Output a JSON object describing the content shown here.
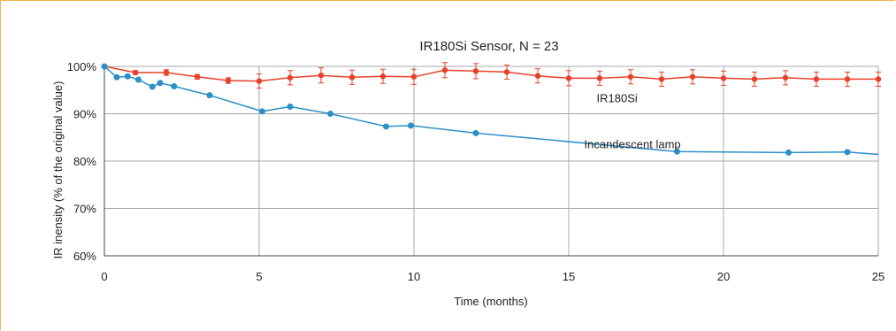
{
  "chart_data": {
    "type": "line",
    "title": "IR180Si Sensor, N = 23",
    "xlabel": "Time (months)",
    "ylabel": "IR inensity (% of the original value)",
    "xlim": [
      0,
      25
    ],
    "ylim": [
      60,
      100
    ],
    "x_ticks": [
      "0",
      "5",
      "10",
      "15",
      "20",
      "25"
    ],
    "y_ticks": [
      "60%",
      "70%",
      "80%",
      "90%",
      "100%"
    ],
    "grid": true,
    "series": [
      {
        "name": "IR180Si",
        "color": "#e8402a",
        "x": [
          0,
          1,
          2,
          3,
          4,
          5,
          6,
          7,
          8,
          9,
          10,
          11,
          12,
          13,
          14,
          15,
          16,
          17,
          18,
          19,
          20,
          21,
          22,
          23,
          24,
          25
        ],
        "y": [
          100,
          98.7,
          98.7,
          97.8,
          97.0,
          96.9,
          97.6,
          98.1,
          97.7,
          97.9,
          97.8,
          99.2,
          99.0,
          98.8,
          98.0,
          97.5,
          97.5,
          97.8,
          97.3,
          97.8,
          97.5,
          97.3,
          97.6,
          97.3,
          97.3,
          97.3
        ],
        "error": [
          0,
          0.4,
          0.6,
          0.5,
          0.6,
          1.5,
          1.5,
          1.6,
          1.5,
          1.5,
          1.6,
          1.6,
          1.6,
          1.5,
          1.5,
          1.6,
          1.5,
          1.5,
          1.5,
          1.5,
          1.5,
          1.5,
          1.5,
          1.5,
          1.5,
          1.5
        ]
      },
      {
        "name": "Incandescent lamp",
        "color": "#2b8fc9",
        "x": [
          0,
          0.4,
          0.75,
          1.1,
          1.55,
          1.8,
          2.25,
          3.4,
          5.1,
          6.0,
          7.3,
          9.1,
          9.9,
          12.0,
          18.5,
          22.1,
          24.0,
          25.0
        ],
        "y": [
          100,
          97.7,
          97.9,
          97.2,
          95.7,
          96.5,
          95.8,
          93.9,
          90.5,
          91.5,
          90.0,
          87.3,
          87.5,
          85.9,
          82.0,
          81.8,
          81.9,
          81.4
        ],
        "markers": [
          true,
          true,
          true,
          true,
          true,
          true,
          true,
          true,
          true,
          true,
          true,
          true,
          true,
          true,
          true,
          true,
          true,
          false
        ]
      }
    ],
    "annotations": [
      {
        "text": "IR180Si",
        "x": 15.9,
        "y": 92.4
      },
      {
        "text": "Incandescent lamp",
        "x": 15.5,
        "y": 82.7
      }
    ]
  }
}
